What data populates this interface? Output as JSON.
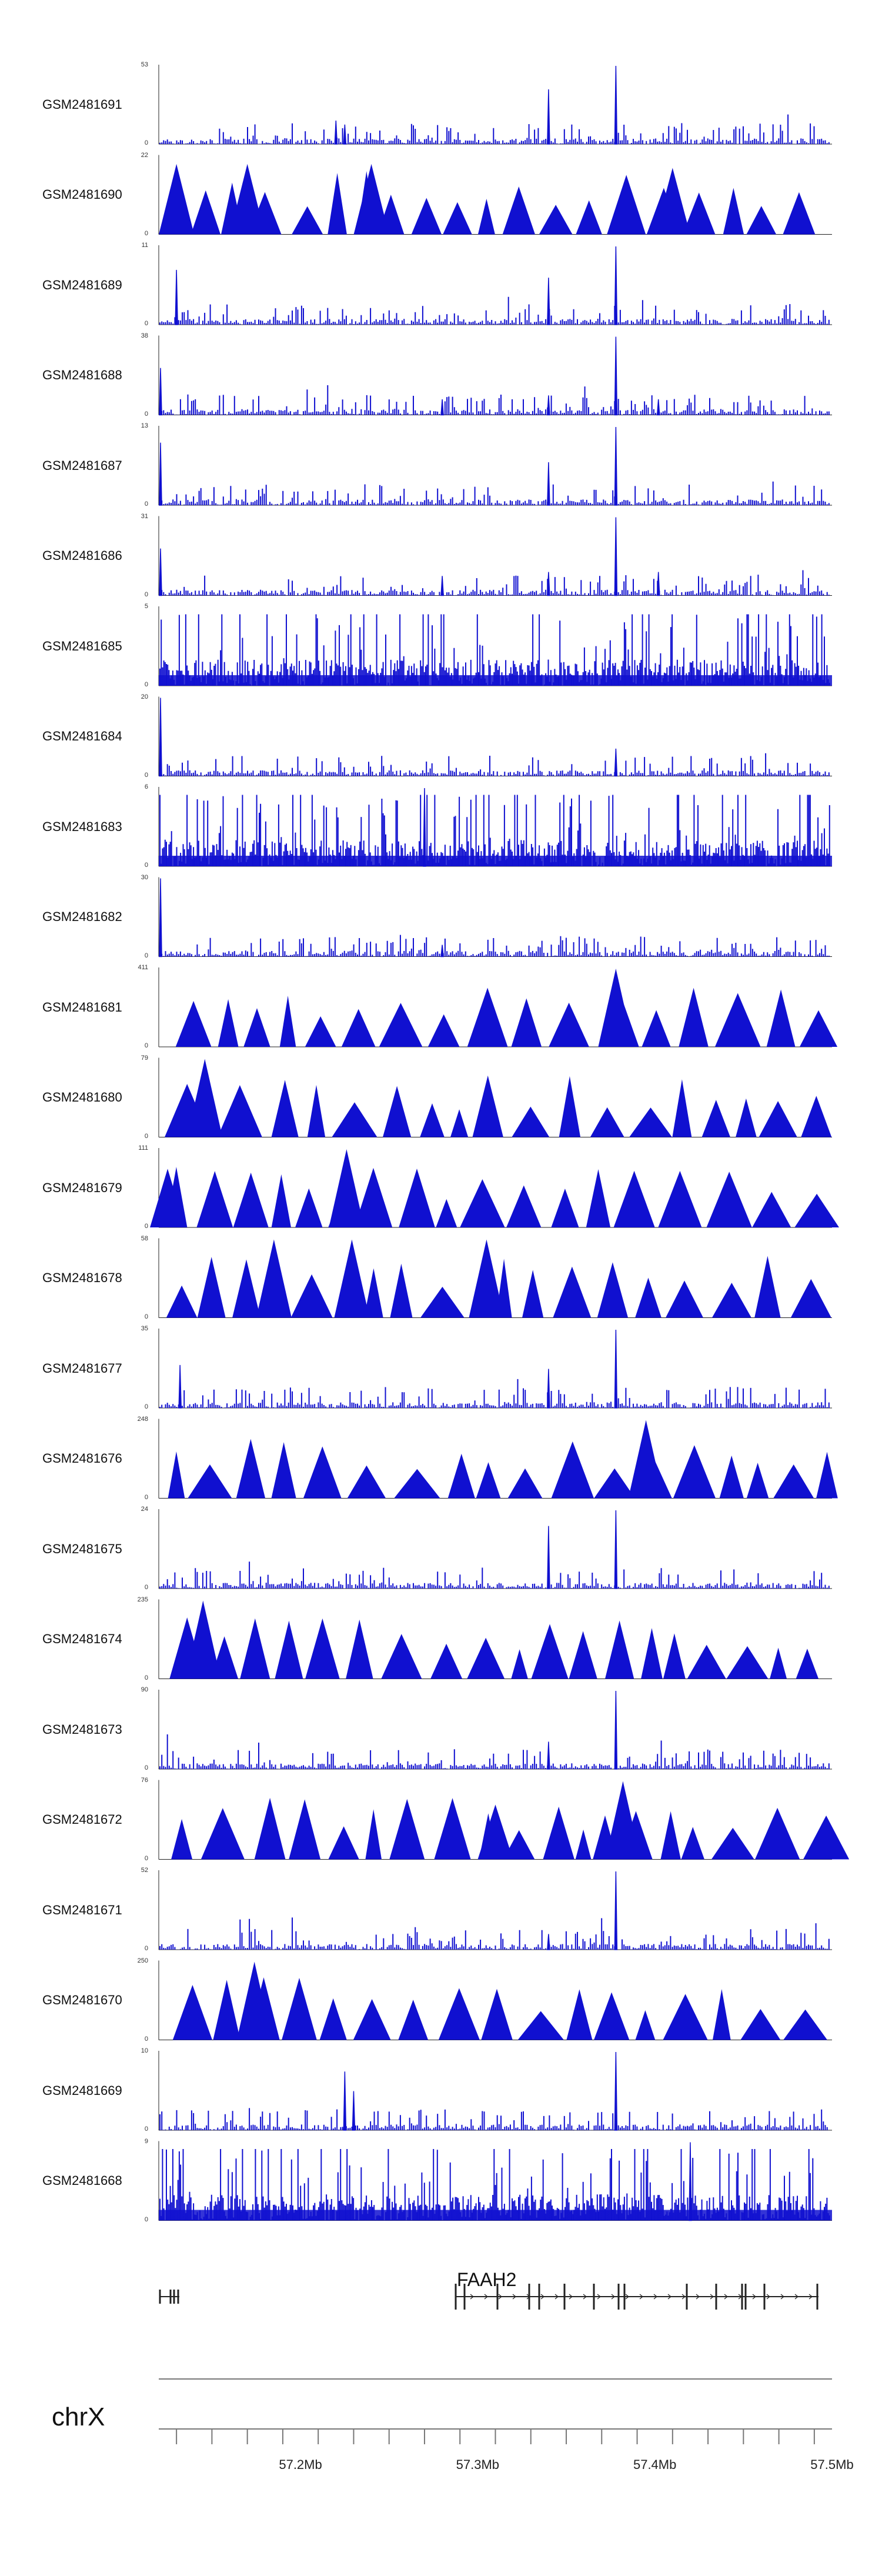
{
  "browser": {
    "chromosome": "chrX",
    "gene": "FAAH2",
    "axis_ticks": [
      "57.2Mb",
      "57.3Mb",
      "57.4Mb",
      "57.5Mb"
    ],
    "track_color": "#1010d0"
  },
  "chart_data": {
    "type": "area",
    "title": "",
    "xlabel": "chrX",
    "ylabel": "",
    "xlim": [
      57.12,
      57.5
    ],
    "x_unit": "Mb",
    "tracks": [
      {
        "name": "GSM2481691",
        "ymax": "53",
        "ymin": "0",
        "style": "spiky",
        "peaks": [
          [
            57.34,
            0.7
          ],
          [
            57.378,
            1.0
          ],
          [
            57.22,
            0.3
          ],
          [
            57.225,
            0.25
          ]
        ]
      },
      {
        "name": "GSM2481690",
        "ymax": "22",
        "ymin": "0",
        "style": "triangles",
        "peaks": [
          [
            57.13,
            0.9
          ],
          [
            57.17,
            0.9
          ],
          [
            57.24,
            0.9
          ],
          [
            57.41,
            0.85
          ]
        ]
      },
      {
        "name": "GSM2481689",
        "ymax": "11",
        "ymin": "0",
        "style": "spiky",
        "peaks": [
          [
            57.378,
            1.0
          ],
          [
            57.34,
            0.6
          ],
          [
            57.13,
            0.7
          ]
        ]
      },
      {
        "name": "GSM2481688",
        "ymax": "38",
        "ymin": "0",
        "style": "spiky",
        "peaks": [
          [
            57.378,
            1.0
          ],
          [
            57.34,
            0.25
          ],
          [
            57.28,
            0.2
          ],
          [
            57.402,
            0.2
          ],
          [
            57.121,
            0.6
          ]
        ]
      },
      {
        "name": "GSM2481687",
        "ymax": "13",
        "ymin": "0",
        "style": "spiky",
        "peaks": [
          [
            57.378,
            1.0
          ],
          [
            57.34,
            0.55
          ],
          [
            57.121,
            0.8
          ]
        ]
      },
      {
        "name": "GSM2481686",
        "ymax": "31",
        "ymin": "0",
        "style": "spiky",
        "peaks": [
          [
            57.378,
            1.0
          ],
          [
            57.34,
            0.3
          ],
          [
            57.28,
            0.25
          ],
          [
            57.402,
            0.3
          ],
          [
            57.121,
            0.6
          ]
        ]
      },
      {
        "name": "GSM2481685",
        "ymax": "5",
        "ymin": "0",
        "style": "dense",
        "peaks": []
      },
      {
        "name": "GSM2481684",
        "ymax": "20",
        "ymin": "0",
        "style": "spiky",
        "peaks": [
          [
            57.121,
            1.0
          ],
          [
            57.378,
            0.35
          ]
        ]
      },
      {
        "name": "GSM2481683",
        "ymax": "6",
        "ymin": "0",
        "style": "dense",
        "peaks": [
          [
            57.27,
            1.0
          ]
        ]
      },
      {
        "name": "GSM2481682",
        "ymax": "30",
        "ymin": "0",
        "style": "spiky",
        "peaks": [
          [
            57.121,
            1.0
          ],
          [
            57.28,
            0.15
          ]
        ]
      },
      {
        "name": "GSM2481681",
        "ymax": "411",
        "ymin": "0",
        "style": "triangles",
        "peaks": [
          [
            57.378,
            1.0
          ]
        ]
      },
      {
        "name": "GSM2481680",
        "ymax": "79",
        "ymin": "0",
        "style": "triangles",
        "peaks": [
          [
            57.146,
            1.0
          ]
        ]
      },
      {
        "name": "GSM2481679",
        "ymax": "111",
        "ymin": "0",
        "style": "triangles",
        "peaks": [
          [
            57.226,
            1.0
          ],
          [
            57.172,
            0.7
          ],
          [
            57.125,
            0.75
          ]
        ]
      },
      {
        "name": "GSM2481678",
        "ymax": "58",
        "ymin": "0",
        "style": "triangles",
        "peaks": [
          [
            57.185,
            1.0
          ],
          [
            57.229,
            1.0
          ],
          [
            57.305,
            1.0
          ]
        ]
      },
      {
        "name": "GSM2481677",
        "ymax": "35",
        "ymin": "0",
        "style": "spiky",
        "peaks": [
          [
            57.378,
            1.0
          ],
          [
            57.132,
            0.55
          ],
          [
            57.34,
            0.5
          ]
        ]
      },
      {
        "name": "GSM2481676",
        "ymax": "248",
        "ymin": "0",
        "style": "triangles",
        "peaks": [
          [
            57.395,
            1.0
          ]
        ]
      },
      {
        "name": "GSM2481675",
        "ymax": "24",
        "ymin": "0",
        "style": "spiky",
        "peaks": [
          [
            57.378,
            1.0
          ],
          [
            57.34,
            0.8
          ]
        ]
      },
      {
        "name": "GSM2481674",
        "ymax": "235",
        "ymin": "0",
        "style": "triangles",
        "peaks": [
          [
            57.145,
            1.0
          ]
        ]
      },
      {
        "name": "GSM2481673",
        "ymax": "90",
        "ymin": "0",
        "style": "spiky",
        "peaks": [
          [
            57.378,
            1.0
          ],
          [
            57.34,
            0.35
          ]
        ]
      },
      {
        "name": "GSM2481672",
        "ymax": "76",
        "ymin": "0",
        "style": "triangles",
        "peaks": [
          [
            57.382,
            1.0
          ],
          [
            57.31,
            0.7
          ]
        ]
      },
      {
        "name": "GSM2481671",
        "ymax": "52",
        "ymin": "0",
        "style": "spiky",
        "peaks": [
          [
            57.378,
            1.0
          ],
          [
            57.34,
            0.2
          ]
        ]
      },
      {
        "name": "GSM2481670",
        "ymax": "250",
        "ymin": "0",
        "style": "triangles",
        "peaks": [
          [
            57.174,
            1.0
          ]
        ]
      },
      {
        "name": "GSM2481669",
        "ymax": "10",
        "ymin": "0",
        "style": "spiky",
        "peaks": [
          [
            57.378,
            1.0
          ],
          [
            57.225,
            0.75
          ],
          [
            57.23,
            0.5
          ]
        ]
      },
      {
        "name": "GSM2481668",
        "ymax": "9",
        "ymin": "0",
        "style": "dense",
        "peaks": [
          [
            57.42,
            1.0
          ]
        ]
      }
    ]
  }
}
